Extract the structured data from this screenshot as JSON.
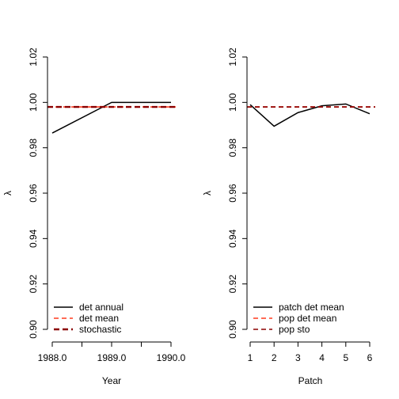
{
  "chart_data": [
    {
      "type": "line",
      "xlabel": "Year",
      "ylabel": "λ",
      "x_ticks": [
        "1988.0",
        "1989.0",
        "1990.0"
      ],
      "xlim": [
        1988.0,
        1990.0
      ],
      "ylim": [
        0.9,
        1.02
      ],
      "y_ticks": [
        "0.90",
        "0.92",
        "0.94",
        "0.96",
        "0.98",
        "1.00",
        "1.02"
      ],
      "grid": false,
      "legend_position": "bottom-left",
      "series": [
        {
          "name": "det annual",
          "color": "#000000",
          "dash": "solid",
          "x": [
            1988.0,
            1989.0,
            1990.0
          ],
          "values": [
            0.9865,
            1.0,
            1.0
          ]
        },
        {
          "name": "det mean",
          "color": "#ff3b1f",
          "dash": "dashed",
          "x": [
            1988.0,
            1990.0
          ],
          "values": [
            0.998,
            0.998
          ]
        },
        {
          "name": "stochastic",
          "color": "#8b0000",
          "dash": "dashed-thick",
          "x": [
            1988.0,
            1990.0
          ],
          "values": [
            0.998,
            0.998
          ]
        }
      ]
    },
    {
      "type": "line",
      "xlabel": "Patch",
      "ylabel": "λ",
      "x_ticks": [
        "1",
        "2",
        "3",
        "4",
        "5",
        "6"
      ],
      "xlim": [
        1,
        6
      ],
      "ylim": [
        0.9,
        1.02
      ],
      "y_ticks": [
        "0.90",
        "0.92",
        "0.94",
        "0.96",
        "0.98",
        "1.00",
        "1.02"
      ],
      "grid": false,
      "legend_position": "bottom-left",
      "series": [
        {
          "name": "patch det mean",
          "color": "#000000",
          "dash": "solid",
          "x": [
            1,
            2,
            3,
            4,
            5,
            6
          ],
          "values": [
            0.999,
            0.9895,
            0.9955,
            0.9985,
            0.9993,
            0.995
          ]
        },
        {
          "name": "pop det mean",
          "color": "#ff3b1f",
          "dash": "dashed",
          "x": [
            1,
            6
          ],
          "values": [
            0.998,
            0.998
          ]
        },
        {
          "name": "pop sto",
          "color": "#8b0000",
          "dash": "dashed",
          "x": [
            1,
            6
          ],
          "values": [
            0.998,
            0.998
          ]
        }
      ]
    }
  ]
}
